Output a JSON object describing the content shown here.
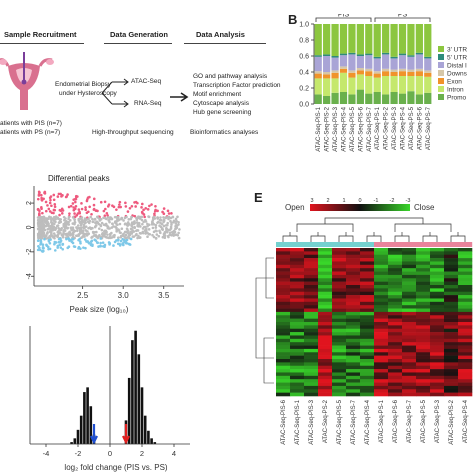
{
  "panelA": {
    "col1_title": "Sample Recruitment",
    "col2_title": "Data Generation",
    "col3_title": "Data Analysis",
    "biopsy_line1": "Endometrial Biopsy",
    "biopsy_line2": "under Hysteroscopy",
    "patients_pis": "atients with PIS (n=7)",
    "patients_ps": "atients with PS (n=7)",
    "atac": "ATAC-Seq",
    "rna": "RNA-Seq",
    "analyses": [
      "GO and pathway analysis",
      "Transcription Factor prediction",
      "Motif enrichment",
      "Cytoscape analysis",
      "Hub gene screening"
    ],
    "hts": "High-throughput sequencing",
    "bioinfo": "Bioinformatics analyses"
  },
  "panelB": {
    "letter": "B",
    "group_pis": "PIS",
    "group_ps": "PS",
    "legend": [
      "3' UTR",
      "5' UTR",
      "Distal I",
      "Downs",
      "Exon",
      "Intron",
      "Promo"
    ],
    "colors": [
      "#8cc63f",
      "#2e8b7a",
      "#a9a4d6",
      "#d6c7a8",
      "#f0932b",
      "#c5e86c",
      "#6ab04c"
    ]
  },
  "panelC": {
    "title": "Differential peaks",
    "xlabel": "Peak size (log₁₀)"
  },
  "panelD": {
    "xlabel": "log₂ fold change (PIS vs. PS)"
  },
  "panelE": {
    "letter": "E",
    "open_label": "Open",
    "close_label": "Close",
    "scale_ticks": [
      "3",
      "2",
      "1",
      "0",
      "-1",
      "-2",
      "-3"
    ],
    "samples": [
      "ATAC-Seq-PIS-6",
      "ATAC-Seq-PIS-1",
      "ATAC-Seq-PIS-3",
      "ATAC-Seq-PS-2",
      "ATAC-Seq-PIS-5",
      "ATAC-Seq-PIS-7",
      "ATAC-Seq-PIS-4",
      "ATAC-Seq-PS-1",
      "ATAC-Seq-PS-6",
      "ATAC-Seq-PS-7",
      "ATAC-Seq-PS-5",
      "ATAC-Seq-PS-3",
      "ATAC-Seq-PIS-2",
      "ATAC-Seq-PS-4"
    ]
  },
  "chart_data": [
    {
      "type": "bar",
      "title": "",
      "ylabel": "",
      "ylim": [
        0,
        1.0
      ],
      "yticks": [
        "0.0",
        "0.2",
        "0.4",
        "0.6",
        "0.8",
        "1.0"
      ],
      "categories": [
        "ATAC-Seq-PIS-1",
        "ATAC-Seq-PIS-2",
        "ATAC-Seq-PIS-3",
        "ATAC-Seq-PIS-4",
        "ATAC-Seq-PIS-5",
        "ATAC-Seq-PIS-6",
        "ATAC-Seq-PIS-7",
        "ATAC-Seq-PS-1",
        "ATAC-Seq-PS-2",
        "ATAC-Seq-PS-3",
        "ATAC-Seq-PS-4",
        "ATAC-Seq-PS-5",
        "ATAC-Seq-PS-6",
        "ATAC-Seq-PS-7"
      ],
      "series": [
        {
          "name": "Promo",
          "values": [
            0.12,
            0.1,
            0.14,
            0.15,
            0.12,
            0.18,
            0.13,
            0.15,
            0.12,
            0.15,
            0.13,
            0.16,
            0.12,
            0.14
          ]
        },
        {
          "name": "Intron",
          "values": [
            0.2,
            0.22,
            0.18,
            0.24,
            0.21,
            0.19,
            0.22,
            0.18,
            0.23,
            0.2,
            0.22,
            0.19,
            0.23,
            0.2
          ]
        },
        {
          "name": "Exon",
          "values": [
            0.06,
            0.05,
            0.07,
            0.05,
            0.06,
            0.05,
            0.06,
            0.05,
            0.06,
            0.05,
            0.06,
            0.05,
            0.06,
            0.05
          ]
        },
        {
          "name": "Downs",
          "values": [
            0.03,
            0.03,
            0.03,
            0.03,
            0.03,
            0.03,
            0.03,
            0.03,
            0.03,
            0.03,
            0.03,
            0.03,
            0.03,
            0.03
          ]
        },
        {
          "name": "Distal I",
          "values": [
            0.18,
            0.2,
            0.16,
            0.14,
            0.2,
            0.15,
            0.17,
            0.16,
            0.18,
            0.14,
            0.17,
            0.16,
            0.18,
            0.15
          ]
        },
        {
          "name": "5' UTR",
          "values": [
            0.02,
            0.02,
            0.02,
            0.02,
            0.02,
            0.02,
            0.02,
            0.02,
            0.02,
            0.02,
            0.02,
            0.02,
            0.02,
            0.02
          ]
        },
        {
          "name": "3' UTR",
          "values": [
            0.39,
            0.38,
            0.4,
            0.37,
            0.36,
            0.38,
            0.37,
            0.41,
            0.36,
            0.41,
            0.37,
            0.39,
            0.36,
            0.41
          ]
        }
      ]
    },
    {
      "type": "scatter",
      "title": "Differential peaks",
      "xlabel": "Peak size (log₁₀)",
      "xticks": [
        "2.5",
        "3.0",
        "3.5"
      ],
      "xlim": [
        1.9,
        3.75
      ],
      "yticks": [
        "2",
        "0",
        "-2",
        "-4"
      ],
      "ylim": [
        -4.8,
        3.4
      ],
      "series": [
        {
          "name": "",
          "color": "#ee5a7e",
          "x_range": [
            1.95,
            3.6
          ],
          "y_range": [
            0.8,
            3.0
          ]
        },
        {
          "name": "",
          "color": "#bdbdbd",
          "x_range": [
            1.95,
            3.7
          ],
          "y_range": [
            -0.9,
            0.9
          ]
        },
        {
          "name": "",
          "color": "#7ec8e8",
          "x_range": [
            1.95,
            3.1
          ],
          "y_range": [
            -2.3,
            -0.9
          ]
        }
      ]
    },
    {
      "type": "bar",
      "title": "",
      "xlabel": "log₂ fold change (PIS vs. PS)",
      "xticks": [
        "-4",
        "-2",
        "0",
        "2",
        "4"
      ],
      "xlim": [
        -5,
        5
      ],
      "x": [
        -2.4,
        -2.2,
        -2.0,
        -1.8,
        -1.6,
        -1.4,
        -1.2,
        -1.0,
        1.0,
        1.2,
        1.4,
        1.6,
        1.8,
        2.0,
        2.2,
        2.4,
        2.6,
        2.8
      ],
      "values": [
        2,
        6,
        15,
        30,
        55,
        60,
        40,
        10,
        25,
        70,
        110,
        120,
        95,
        60,
        30,
        14,
        6,
        2
      ],
      "markers": [
        {
          "x": -1.0,
          "color": "#1f4fd1"
        },
        {
          "x": 1.0,
          "color": "#e02020"
        }
      ]
    },
    {
      "type": "heatmap",
      "title": "",
      "colorscale": {
        "min": -3,
        "max": 3,
        "high": "#e0141e",
        "mid": "#111111",
        "low": "#39d62a"
      },
      "columns": [
        "ATAC-Seq-PIS-6",
        "ATAC-Seq-PIS-1",
        "ATAC-Seq-PIS-3",
        "ATAC-Seq-PS-2",
        "ATAC-Seq-PIS-5",
        "ATAC-Seq-PIS-7",
        "ATAC-Seq-PIS-4",
        "ATAC-Seq-PS-1",
        "ATAC-Seq-PS-6",
        "ATAC-Seq-PS-7",
        "ATAC-Seq-PS-5",
        "ATAC-Seq-PS-3",
        "ATAC-Seq-PIS-2",
        "ATAC-Seq-PS-4"
      ],
      "group_colors": {
        "left": "#74d1cf",
        "right": "#e9849b"
      }
    }
  ]
}
